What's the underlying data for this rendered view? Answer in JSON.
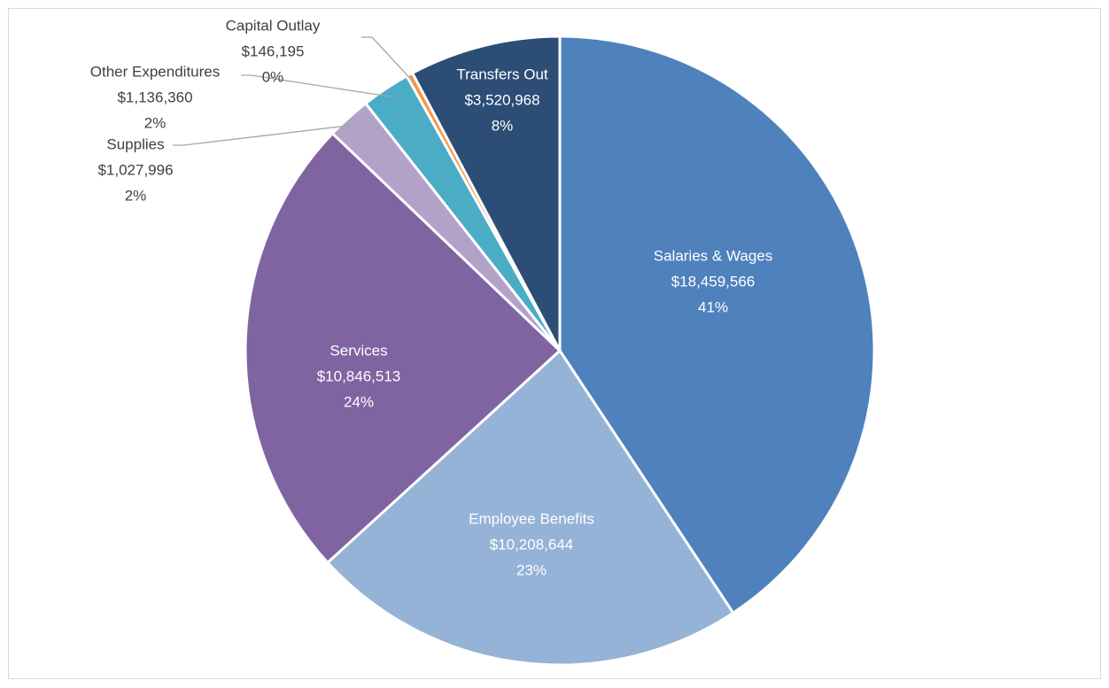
{
  "chart_data": {
    "type": "pie",
    "categories": [
      "Salaries & Wages",
      "Employee Benefits",
      "Services",
      "Supplies",
      "Other Expenditures",
      "Capital Outlay",
      "Transfers Out"
    ],
    "values": [
      18459566,
      10208644,
      10846513,
      1027996,
      1136360,
      146195,
      3520968
    ],
    "value_labels": [
      "$18,459,566",
      "$10,208,644",
      "$10,846,513",
      "$1,027,996",
      "$1,136,360",
      "$146,195",
      "$3,520,968"
    ],
    "percent_labels": [
      "41%",
      "23%",
      "24%",
      "2%",
      "2%",
      "0%",
      "8%"
    ],
    "colors": [
      "#4f81bd",
      "#95b3d7",
      "#8064a2",
      "#b3a2c7",
      "#4bacc6",
      "#f79646",
      "#2c4d75"
    ]
  }
}
